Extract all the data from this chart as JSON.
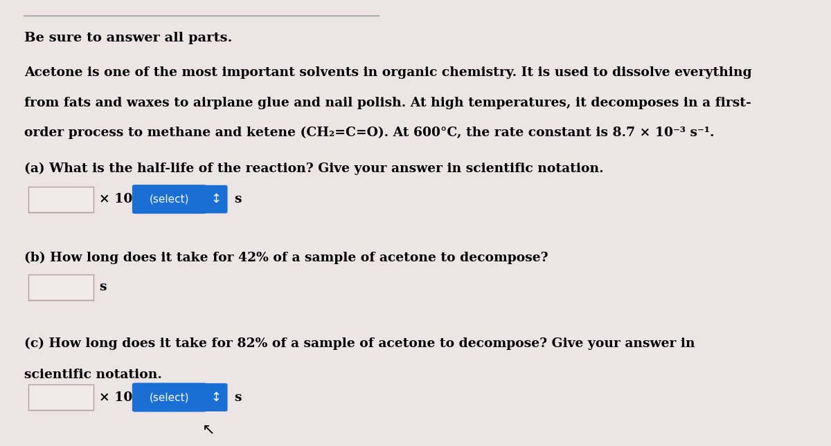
{
  "bg_color": "#ede5e5",
  "top_line_color": "#aaaaaa",
  "bold_color": "#000000",
  "title": "Be sure to answer all parts.",
  "para_line1": "Acetone is one of the most important solvents in organic chemistry. It is used to dissolve everything",
  "para_line2": "from fats and waxes to airplane glue and nail polish. At high temperatures, it decomposes in a first-",
  "para_line3": "order process to methane and ketene (CH₂=C=O). At 600°C, the rate constant is 8.7 × 10⁻³ s⁻¹.",
  "q_a": "(a) What is the half-life of the reaction? Give your answer in scientific notation.",
  "q_b": "(b) How long does it take for 42% of a sample of acetone to decompose?",
  "q_c_line1": "(c) How long does it take for 82% of a sample of acetone to decompose? Give your answer in",
  "q_c_line2": "scientific notation.",
  "input_box_color": "#f0eaea",
  "input_box_border": "#b0a0a0",
  "select_btn_color": "#1a6fd4",
  "select_btn_text": "(select)",
  "select_btn_text_color": "#ffffff",
  "unit_s": "s",
  "times10": "× 10",
  "font_size_title": 14,
  "font_size_body": 13.5,
  "font_size_btn": 11
}
